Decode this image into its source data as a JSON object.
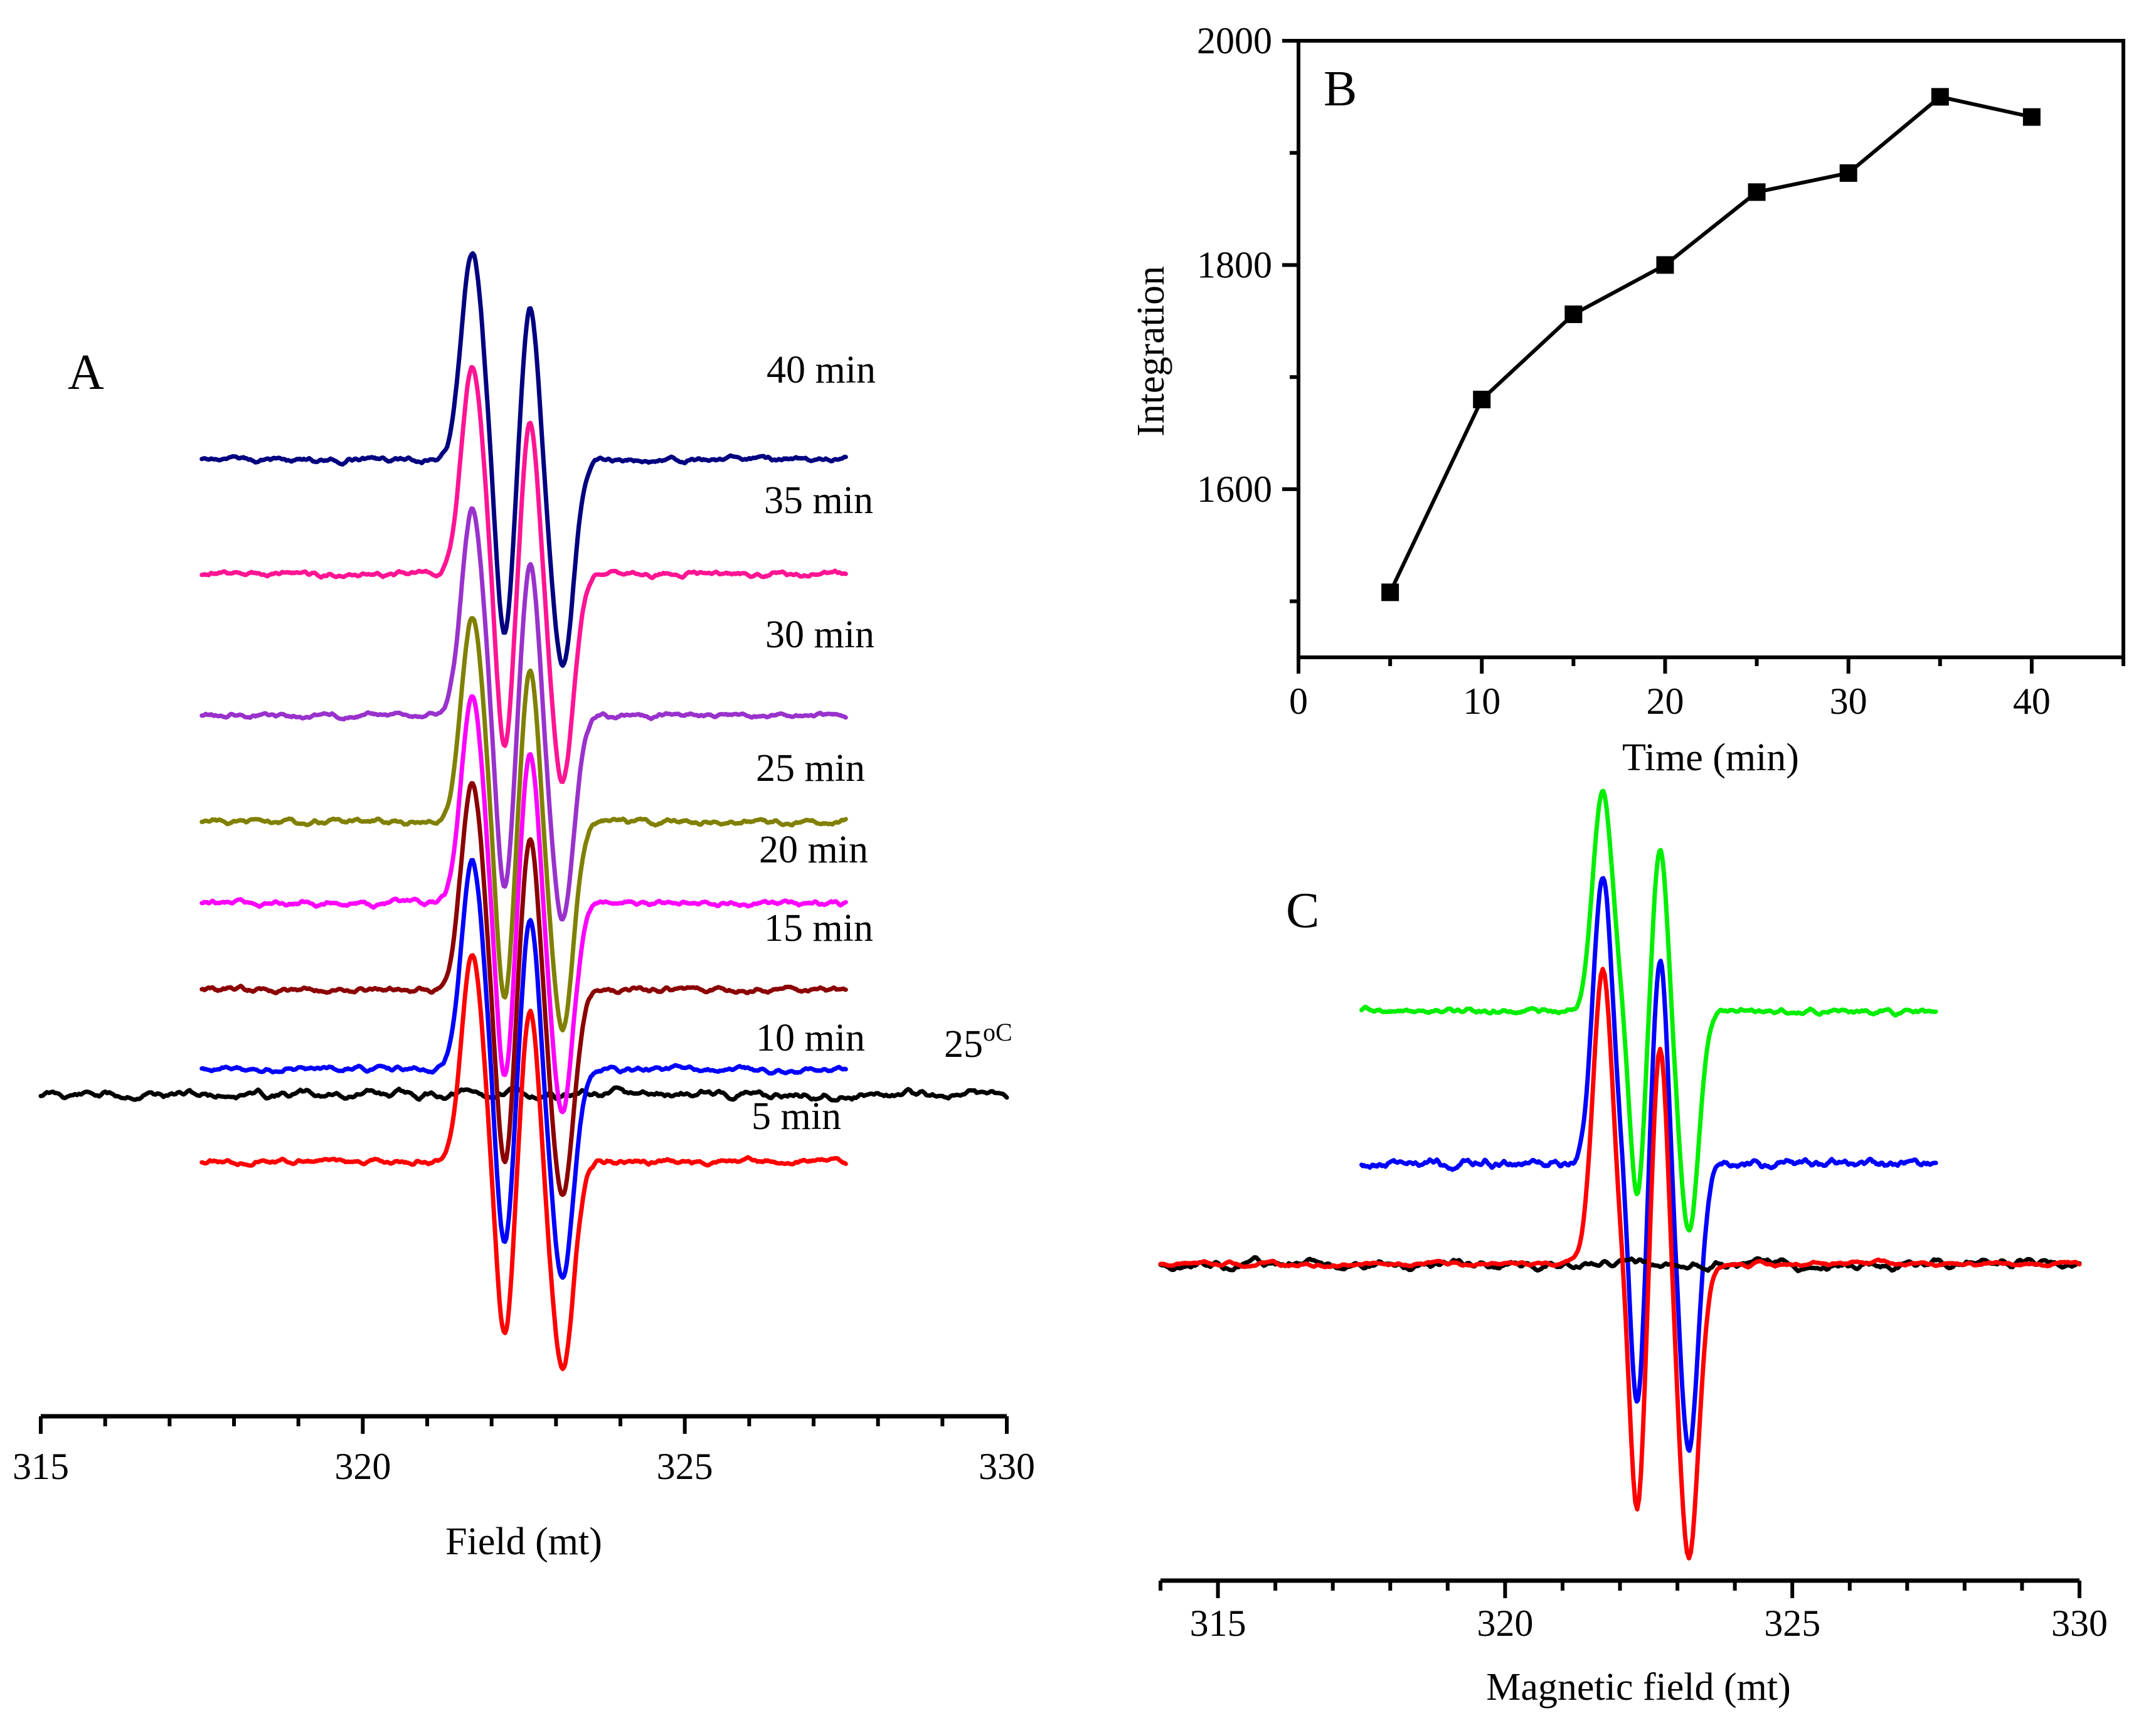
{
  "chart_data": [
    {
      "panel": "A",
      "type": "line",
      "title": "",
      "panel_label": "A",
      "xlabel": "Field (mt)",
      "ylabel": "",
      "xlim": [
        315,
        330
      ],
      "xticks": [
        315,
        320,
        325,
        330
      ],
      "grid": false,
      "temperature_label": "25",
      "temperature_unit": "oC",
      "series": [
        {
          "name": "25°C",
          "color": "#000000",
          "amp": 0,
          "noise": 0.55,
          "x_range": [
            315,
            330
          ],
          "seed": 11
        },
        {
          "name": "5 min",
          "label": "5 min",
          "color": "#ff0000",
          "amp": 1.0,
          "noise": 0.3,
          "x_range": [
            317.5,
            327.5
          ],
          "seed": 5
        },
        {
          "name": "10 min",
          "label": "10 min",
          "color": "#0000ff",
          "amp": 1.0,
          "noise": 0.3,
          "x_range": [
            317.5,
            327.5
          ],
          "seed": 10
        },
        {
          "name": "15 min",
          "label": "15 min",
          "color": "#8b0000",
          "amp": 1.0,
          "noise": 0.3,
          "x_range": [
            317.5,
            327.5
          ],
          "seed": 15
        },
        {
          "name": "20 min",
          "label": "20 min",
          "color": "#ff00ff",
          "amp": 1.0,
          "noise": 0.3,
          "x_range": [
            317.5,
            327.5
          ],
          "seed": 20
        },
        {
          "name": "25 min",
          "label": "25 min",
          "color": "#808000",
          "amp": 1.0,
          "noise": 0.3,
          "x_range": [
            317.5,
            327.5
          ],
          "seed": 25
        },
        {
          "name": "30 min",
          "label": "30 min",
          "color": "#9932cc",
          "amp": 1.0,
          "noise": 0.3,
          "x_range": [
            317.5,
            327.5
          ],
          "seed": 30
        },
        {
          "name": "35 min",
          "label": "35 min",
          "color": "#ff1493",
          "amp": 1.0,
          "noise": 0.3,
          "x_range": [
            317.5,
            327.5
          ],
          "seed": 35
        },
        {
          "name": "40 min",
          "label": "40 min",
          "color": "#000080",
          "amp": 1.0,
          "noise": 0.3,
          "x_range": [
            317.5,
            327.5
          ],
          "seed": 40
        }
      ],
      "line_shape": {
        "peak1": 321.7,
        "trough1": 322.2,
        "peak2": 322.6,
        "trough2": 323.1
      }
    },
    {
      "panel": "B",
      "type": "line",
      "title": "",
      "panel_label": "B",
      "xlabel": "Time (min)",
      "ylabel": "Integration",
      "xlim": [
        0,
        45
      ],
      "ylim": [
        1450,
        2000
      ],
      "xticks": [
        0,
        10,
        20,
        30,
        40
      ],
      "yticks": [
        1600,
        1800,
        2000
      ],
      "grid": false,
      "marker": "square",
      "x": [
        5,
        10,
        15,
        20,
        25,
        30,
        35,
        40
      ],
      "y": [
        1508,
        1680,
        1756,
        1800,
        1865,
        1882,
        1950,
        1932
      ]
    },
    {
      "panel": "C",
      "type": "line",
      "title": "",
      "panel_label": "C",
      "xlabel": "Magnetic field (mt)",
      "ylabel": "",
      "xlim": [
        314,
        330
      ],
      "xticks": [
        315,
        320,
        325,
        330
      ],
      "grid": false,
      "series": [
        {
          "name": "green trace",
          "color": "#00ee00",
          "amp": 1.0,
          "noise": 0.3,
          "x_range": [
            317.5,
            327.5
          ],
          "seed": 71
        },
        {
          "name": "blue trace",
          "color": "#0000ff",
          "amp": 1.0,
          "noise": 0.45,
          "x_range": [
            317.5,
            327.5
          ],
          "seed": 72
        },
        {
          "name": "black trace",
          "color": "#000000",
          "amp": 0,
          "noise": 0.55,
          "x_range": [
            314,
            330
          ],
          "seed": 73
        },
        {
          "name": "red trace",
          "color": "#ff0000",
          "amp": 1.0,
          "noise": 0.3,
          "x_range": [
            314,
            330
          ],
          "seed": 74
        }
      ],
      "line_shape": {
        "peak1": 321.7,
        "trough1": 322.3,
        "peak2": 322.7,
        "trough2": 323.2
      }
    }
  ]
}
